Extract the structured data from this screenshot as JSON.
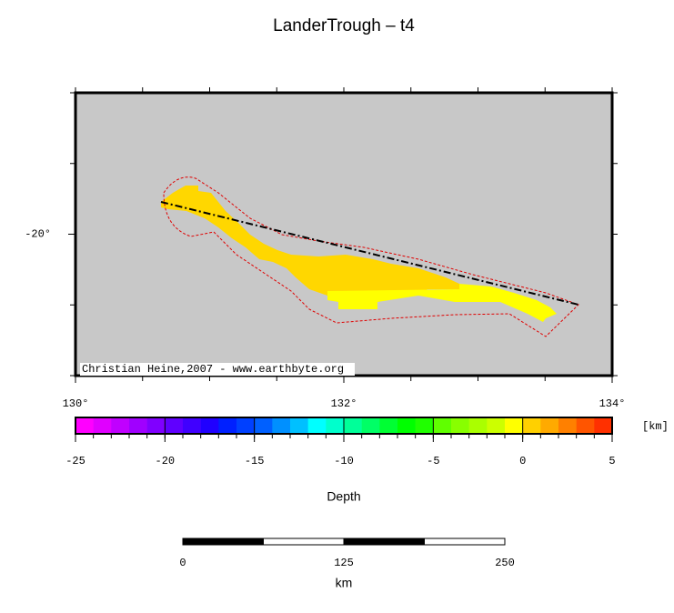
{
  "title": "LanderTrough – t4",
  "map": {
    "xlim": [
      130,
      134
    ],
    "ylim": [
      -21,
      -19
    ],
    "xticks": [
      {
        "value": 130,
        "label": "130°"
      },
      {
        "value": 132,
        "label": "132°"
      },
      {
        "value": 134,
        "label": "134°"
      }
    ],
    "yticks": [
      {
        "value": -20,
        "label": "-20°"
      }
    ],
    "credit": "Christian Heine,2007 - www.earthbyte.org"
  },
  "colorbar": {
    "range": [
      -25,
      5
    ],
    "ticks": [
      -25,
      -20,
      -15,
      -10,
      -5,
      0,
      5
    ],
    "unit": "[km]",
    "label": "Depth",
    "colors": [
      "#ff00ff",
      "#e000ff",
      "#c000ff",
      "#a000ff",
      "#8000ff",
      "#6000ff",
      "#4000ff",
      "#2000ff",
      "#0020ff",
      "#0040ff",
      "#0060ff",
      "#0090ff",
      "#00c0ff",
      "#00ffff",
      "#00ffcc",
      "#00ff99",
      "#00ff66",
      "#00ff33",
      "#00ff00",
      "#20ff00",
      "#60ff00",
      "#88ff00",
      "#aaff00",
      "#ccff00",
      "#ffff00",
      "#ffd000",
      "#ffaa00",
      "#ff8000",
      "#ff5500",
      "#ff3000"
    ]
  },
  "scalebar": {
    "range": [
      0,
      250
    ],
    "ticks": [
      0,
      125,
      250
    ],
    "unit": "km"
  }
}
